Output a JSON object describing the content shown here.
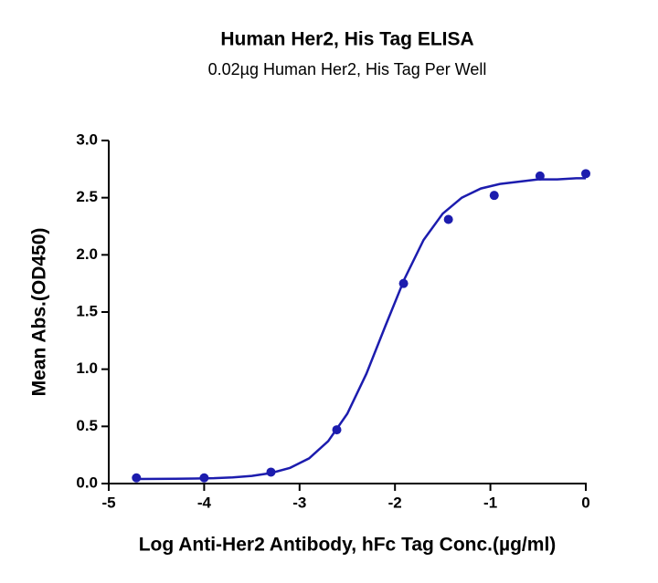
{
  "chart_data": {
    "type": "scatter",
    "title": "Human Her2, His Tag ELISA",
    "subtitle": "0.02µg Human Her2, His Tag Per Well",
    "x_label": "Log Anti-Her2 Antibody, hFc Tag Conc.(µg/ml)",
    "y_label": "Mean Abs.(OD450)",
    "xlim": [
      -5,
      0
    ],
    "ylim": [
      0,
      3
    ],
    "xticks": [
      -5,
      -4,
      -3,
      -2,
      -1,
      0
    ],
    "yticks": [
      {
        "value": 0,
        "label": "0.0"
      },
      {
        "value": 0.5,
        "label": "0.5"
      },
      {
        "value": 1,
        "label": "1.0"
      },
      {
        "value": 1.5,
        "label": "1.5"
      },
      {
        "value": 2,
        "label": "2.0"
      },
      {
        "value": 2.5,
        "label": "2.5"
      },
      {
        "value": 3,
        "label": "3.0"
      }
    ],
    "color": "#1c1cae",
    "points": {
      "x": [
        -4.71,
        -4.0,
        -3.3,
        -2.61,
        -1.91,
        -1.44,
        -0.96,
        -0.48,
        0
      ],
      "values": [
        0.05,
        0.05,
        0.1,
        0.47,
        1.75,
        2.31,
        2.52,
        2.69,
        2.71
      ]
    },
    "fit": {
      "x": [
        -4.7,
        -4.5,
        -4.3,
        -4.1,
        -3.9,
        -3.7,
        -3.5,
        -3.3,
        -3.1,
        -2.9,
        -2.7,
        -2.5,
        -2.3,
        -2.1,
        -1.9,
        -1.7,
        -1.5,
        -1.3,
        -1.1,
        -0.9,
        -0.7,
        -0.5,
        -0.3,
        -0.1,
        0
      ],
      "values": [
        0.04,
        0.041,
        0.042,
        0.044,
        0.047,
        0.054,
        0.067,
        0.092,
        0.137,
        0.22,
        0.37,
        0.61,
        0.96,
        1.38,
        1.79,
        2.13,
        2.36,
        2.5,
        2.58,
        2.62,
        2.64,
        2.66,
        2.66,
        2.67,
        2.67
      ]
    }
  }
}
